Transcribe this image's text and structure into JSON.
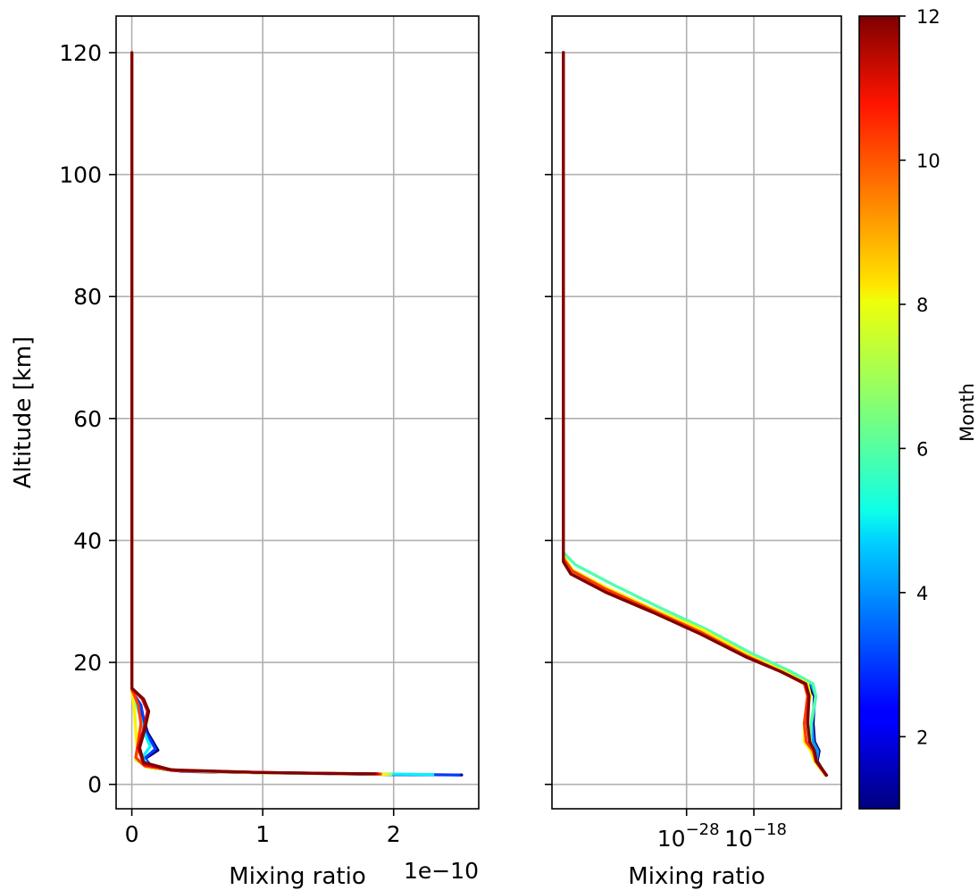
{
  "chart_data": [
    {
      "type": "line",
      "panel": "left",
      "xlabel": "Mixing ratio",
      "ylabel": "Altitude [km]",
      "x_offset_text": "1e−10",
      "x_scale": "linear",
      "x_units_factor": 1e-10,
      "xlim": [
        -0.12,
        2.65
      ],
      "ylim": [
        -4,
        126
      ],
      "xticks": [
        0,
        1,
        2
      ],
      "xtick_labels": [
        "0",
        "1",
        "2"
      ],
      "yticks": [
        0,
        20,
        40,
        60,
        80,
        100,
        120
      ],
      "ytick_labels": [
        "0",
        "20",
        "40",
        "60",
        "80",
        "100",
        "120"
      ],
      "grid": true,
      "series": [
        {
          "month": 1,
          "points": [
            [
              0,
              120
            ],
            [
              0,
              60
            ],
            [
              0,
              20
            ],
            [
              0,
              15.3
            ],
            [
              0.06,
              13
            ],
            [
              0.12,
              8.5
            ],
            [
              0.2,
              5.6
            ],
            [
              0.1,
              4.2
            ],
            [
              0.15,
              2.7
            ],
            [
              0.4,
              2.1
            ],
            [
              1.0,
              1.9
            ],
            [
              1.5,
              1.75
            ],
            [
              2.0,
              1.6
            ],
            [
              2.52,
              1.55
            ]
          ]
        },
        {
          "month": 3,
          "points": [
            [
              0,
              120
            ],
            [
              0,
              60
            ],
            [
              0,
              20
            ],
            [
              0,
              15.3
            ],
            [
              0.07,
              13
            ],
            [
              0.11,
              8.5
            ],
            [
              0.18,
              5.8
            ],
            [
              0.1,
              4.3
            ],
            [
              0.16,
              2.7
            ],
            [
              0.42,
              2.1
            ],
            [
              1.0,
              1.9
            ],
            [
              1.6,
              1.75
            ],
            [
              2.0,
              1.6
            ],
            [
              2.5,
              1.55
            ]
          ]
        },
        {
          "month": 5,
          "points": [
            [
              0,
              120
            ],
            [
              0,
              60
            ],
            [
              0,
              20
            ],
            [
              0,
              15.5
            ],
            [
              0.04,
              13
            ],
            [
              0.09,
              8.8
            ],
            [
              0.14,
              6.2
            ],
            [
              0.08,
              4.4
            ],
            [
              0.14,
              2.8
            ],
            [
              0.4,
              2.2
            ],
            [
              1.0,
              1.9
            ],
            [
              1.5,
              1.8
            ],
            [
              2.0,
              1.7
            ],
            [
              2.3,
              1.6
            ]
          ]
        },
        {
          "month": 7,
          "points": [
            [
              0,
              120
            ],
            [
              0,
              60
            ],
            [
              0,
              20
            ],
            [
              0,
              15.5
            ],
            [
              0.02,
              13
            ],
            [
              0.03,
              9
            ],
            [
              0.05,
              6
            ],
            [
              0.03,
              4
            ],
            [
              0.12,
              2.8
            ],
            [
              0.4,
              2.2
            ],
            [
              1.0,
              1.9
            ],
            [
              1.5,
              1.8
            ],
            [
              1.98,
              1.65
            ]
          ]
        },
        {
          "month": 8,
          "points": [
            [
              0,
              120
            ],
            [
              0,
              60
            ],
            [
              0,
              20
            ],
            [
              0,
              15.6
            ],
            [
              0.02,
              12
            ],
            [
              0.03,
              8.5
            ],
            [
              0.04,
              6
            ],
            [
              0.03,
              4.2
            ],
            [
              0.12,
              2.8
            ],
            [
              0.4,
              2.2
            ],
            [
              1.0,
              1.9
            ],
            [
              1.5,
              1.8
            ],
            [
              1.95,
              1.65
            ]
          ]
        },
        {
          "month": 10,
          "points": [
            [
              0,
              120
            ],
            [
              0,
              60
            ],
            [
              0,
              20
            ],
            [
              0,
              15.6
            ],
            [
              0.05,
              13
            ],
            [
              0.07,
              10
            ],
            [
              0.05,
              7
            ],
            [
              0.03,
              4.4
            ],
            [
              0.1,
              3.0
            ],
            [
              0.35,
              2.3
            ],
            [
              1.0,
              1.95
            ],
            [
              1.5,
              1.8
            ],
            [
              1.9,
              1.7
            ]
          ]
        },
        {
          "month": 11,
          "points": [
            [
              0,
              120
            ],
            [
              0,
              60
            ],
            [
              0,
              20
            ],
            [
              0,
              15.7
            ],
            [
              0.08,
              14
            ],
            [
              0.12,
              12
            ],
            [
              0.09,
              9
            ],
            [
              0.05,
              6
            ],
            [
              0.09,
              3.3
            ],
            [
              0.3,
              2.3
            ],
            [
              1.0,
              1.95
            ],
            [
              1.5,
              1.8
            ],
            [
              1.88,
              1.72
            ]
          ]
        },
        {
          "month": 12,
          "points": [
            [
              0,
              120
            ],
            [
              0,
              60
            ],
            [
              0,
              20
            ],
            [
              0,
              15.8
            ],
            [
              0.09,
              14
            ],
            [
              0.13,
              12
            ],
            [
              0.1,
              9
            ],
            [
              0.06,
              6
            ],
            [
              0.09,
              3.6
            ],
            [
              0.3,
              2.4
            ],
            [
              1.0,
              1.95
            ],
            [
              1.5,
              1.8
            ],
            [
              1.86,
              1.72
            ]
          ]
        }
      ]
    },
    {
      "type": "line",
      "panel": "right",
      "xlabel": "Mixing ratio",
      "x_scale": "log",
      "xlim_log10": [
        -48,
        -5
      ],
      "ylim": [
        -4,
        126
      ],
      "xticks_log10": [
        -28,
        -18
      ],
      "xtick_labels": [
        {
          "base": "10",
          "exp": "−28"
        },
        {
          "base": "10",
          "exp": "−18"
        }
      ],
      "yticks": [
        0,
        20,
        40,
        60,
        80,
        100,
        120
      ],
      "grid": true,
      "series": [
        {
          "month": 1,
          "points": [
            [
              -46.3,
              120
            ],
            [
              -46.3,
              60
            ],
            [
              -46.3,
              37
            ],
            [
              -45,
              35
            ],
            [
              -40,
              32
            ],
            [
              -33,
              28.5
            ],
            [
              -26,
              25
            ],
            [
              -19,
              21
            ],
            [
              -14,
              18.5
            ],
            [
              -10,
              16.5
            ],
            [
              -9,
              14.5
            ],
            [
              -9.2,
              10
            ],
            [
              -9,
              7
            ],
            [
              -8.3,
              5.5
            ],
            [
              -8.6,
              3.8
            ],
            [
              -7.3,
              1.5
            ]
          ]
        },
        {
          "month": 4,
          "points": [
            [
              -46.3,
              120
            ],
            [
              -46.3,
              60
            ],
            [
              -46.3,
              37.5
            ],
            [
              -45,
              35
            ],
            [
              -40,
              32
            ],
            [
              -33,
              28.5
            ],
            [
              -26,
              25
            ],
            [
              -19,
              21
            ],
            [
              -13.5,
              18.5
            ],
            [
              -9.5,
              16.5
            ],
            [
              -8.8,
              14.5
            ],
            [
              -9.4,
              10
            ],
            [
              -9.2,
              7
            ],
            [
              -8.5,
              5.5
            ],
            [
              -8.7,
              3.8
            ],
            [
              -7.3,
              1.5
            ]
          ]
        },
        {
          "month": 6,
          "points": [
            [
              -46.3,
              120
            ],
            [
              -46.3,
              60
            ],
            [
              -46.3,
              38
            ],
            [
              -44.5,
              36
            ],
            [
              -39,
              32.8
            ],
            [
              -32,
              29
            ],
            [
              -25,
              25.4
            ],
            [
              -18,
              21.3
            ],
            [
              -12.5,
              18.5
            ],
            [
              -9.2,
              16.5
            ],
            [
              -8.8,
              14.5
            ],
            [
              -9.5,
              10
            ],
            [
              -9.6,
              7
            ],
            [
              -9,
              5.5
            ],
            [
              -8.8,
              3.8
            ],
            [
              -7.4,
              1.6
            ]
          ]
        },
        {
          "month": 8,
          "points": [
            [
              -46.3,
              120
            ],
            [
              -46.3,
              60
            ],
            [
              -46.3,
              37.5
            ],
            [
              -45,
              35.2
            ],
            [
              -40,
              32.3
            ],
            [
              -33,
              28.8
            ],
            [
              -25.5,
              25.3
            ],
            [
              -19,
              21.3
            ],
            [
              -13.5,
              18.5
            ],
            [
              -10,
              16.5
            ],
            [
              -9.6,
              14.5
            ],
            [
              -10.5,
              10
            ],
            [
              -10.5,
              7
            ],
            [
              -9.5,
              5.5
            ],
            [
              -9,
              3.8
            ],
            [
              -7.4,
              1.6
            ]
          ]
        },
        {
          "month": 10,
          "points": [
            [
              -46.3,
              120
            ],
            [
              -46.3,
              60
            ],
            [
              -46.3,
              37
            ],
            [
              -45,
              35
            ],
            [
              -40,
              32
            ],
            [
              -33,
              28.5
            ],
            [
              -26,
              25
            ],
            [
              -19,
              21
            ],
            [
              -14,
              18.5
            ],
            [
              -10.5,
              16.5
            ],
            [
              -10,
              14.5
            ],
            [
              -10.5,
              10
            ],
            [
              -10.2,
              7
            ],
            [
              -9.2,
              5.5
            ],
            [
              -8.8,
              3.8
            ],
            [
              -7.3,
              1.5
            ]
          ]
        },
        {
          "month": 12,
          "points": [
            [
              -46.3,
              120
            ],
            [
              -46.3,
              60
            ],
            [
              -46.3,
              36.5
            ],
            [
              -45.2,
              34.5
            ],
            [
              -40,
              31.5
            ],
            [
              -33,
              28.2
            ],
            [
              -26,
              24.7
            ],
            [
              -19,
              20.8
            ],
            [
              -14,
              18.5
            ],
            [
              -10.3,
              16.5
            ],
            [
              -9.8,
              14.5
            ],
            [
              -10,
              10
            ],
            [
              -9.7,
              7
            ],
            [
              -9,
              5.5
            ],
            [
              -8.7,
              3.8
            ],
            [
              -7.2,
              1.5
            ]
          ]
        }
      ]
    },
    {
      "type": "colorbar",
      "label": "Month",
      "colormap": "jet",
      "range": [
        1,
        12
      ],
      "ticks": [
        2,
        4,
        6,
        8,
        10,
        12
      ],
      "tick_labels": [
        "2",
        "4",
        "6",
        "8",
        "10",
        "12"
      ]
    }
  ]
}
